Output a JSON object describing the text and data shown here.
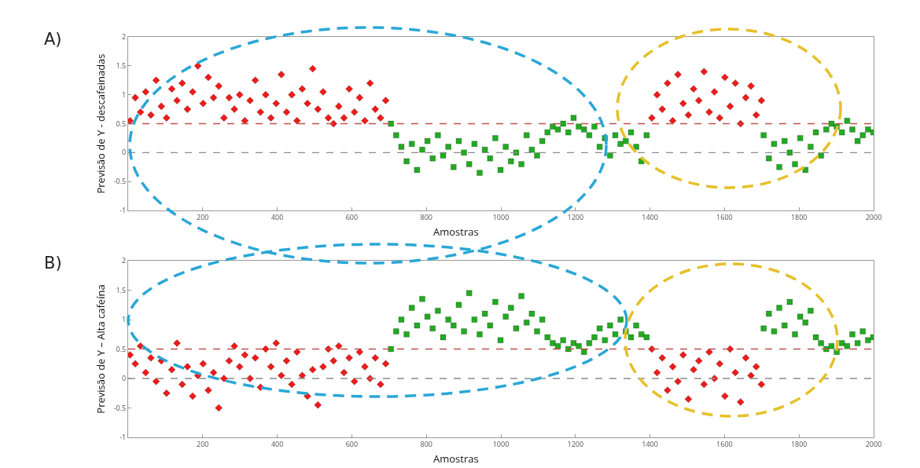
{
  "chart_data": [
    {
      "type": "scatter",
      "xlabel": "Amostras",
      "ylabel": "Previsão de Y - descafeinadas",
      "annotations": [
        "A)"
      ],
      "xlim": [
        0,
        2000
      ],
      "ylim": [
        -1,
        2
      ],
      "xticks": [
        200,
        400,
        600,
        800,
        1000,
        1200,
        1400,
        1600,
        1800,
        2000
      ],
      "yticks": [
        -1,
        -0.5,
        0,
        0.5,
        1,
        1.5,
        2
      ],
      "grid": false,
      "ref_lines": [
        {
          "axis": "y",
          "value": 0.5,
          "color": "#c0504d",
          "line_style": "dashed"
        },
        {
          "axis": "y",
          "value": 0,
          "color": "#8c8c8c",
          "line_style": "dashed"
        }
      ],
      "series": [
        {
          "color": "#ee1b1b",
          "marker": "diamond",
          "x": [
            5,
            19,
            33,
            47,
            61,
            75,
            89,
            103,
            117,
            131,
            145,
            159,
            173,
            187,
            201,
            215,
            229,
            243,
            257,
            271,
            285,
            299,
            313,
            327,
            341,
            355,
            369,
            383,
            397,
            411,
            425,
            439,
            453,
            467,
            481,
            495,
            509,
            523,
            537,
            551,
            565,
            579,
            593,
            607,
            621,
            635,
            649,
            663,
            677,
            691,
            1405,
            1419,
            1433,
            1447,
            1461,
            1475,
            1489,
            1503,
            1517,
            1531,
            1545,
            1559,
            1573,
            1587,
            1601,
            1615,
            1629,
            1643,
            1657,
            1671,
            1685,
            1699
          ],
          "values": [
            0.55,
            0.95,
            0.7,
            1.05,
            0.65,
            1.25,
            0.8,
            0.6,
            1.1,
            0.9,
            1.2,
            0.75,
            1.05,
            1.5,
            0.85,
            1.3,
            0.95,
            1.15,
            0.6,
            0.95,
            0.75,
            1.0,
            0.55,
            0.9,
            1.25,
            0.7,
            1.0,
            0.6,
            0.85,
            1.35,
            0.7,
            1.0,
            0.55,
            1.1,
            0.85,
            1.45,
            0.75,
            1.05,
            0.6,
            0.5,
            0.8,
            0.6,
            1.1,
            0.7,
            0.95,
            0.55,
            1.2,
            0.75,
            0.6,
            0.9,
            0.6,
            1.0,
            0.75,
            1.2,
            0.55,
            1.35,
            0.85,
            0.65,
            1.1,
            0.9,
            1.4,
            0.7,
            1.05,
            0.6,
            1.3,
            0.8,
            1.2,
            0.5,
            0.95,
            1.15,
            0.65,
            0.9
          ]
        },
        {
          "color": "#22aa22",
          "marker": "square",
          "x": [
            705,
            719,
            733,
            747,
            761,
            775,
            789,
            803,
            817,
            831,
            845,
            859,
            873,
            887,
            901,
            915,
            929,
            943,
            957,
            971,
            985,
            999,
            1013,
            1027,
            1041,
            1055,
            1069,
            1083,
            1097,
            1111,
            1125,
            1139,
            1153,
            1167,
            1181,
            1195,
            1209,
            1223,
            1237,
            1251,
            1265,
            1279,
            1293,
            1307,
            1321,
            1335,
            1349,
            1363,
            1377,
            1391,
            1705,
            1719,
            1733,
            1747,
            1761,
            1775,
            1789,
            1803,
            1817,
            1831,
            1845,
            1859,
            1873,
            1887,
            1901,
            1915,
            1929,
            1943,
            1957,
            1971,
            1985,
            1999
          ],
          "values": [
            0.5,
            0.3,
            0.1,
            -0.15,
            0.15,
            -0.3,
            0.05,
            0.2,
            -0.1,
            0.3,
            -0.05,
            0.1,
            -0.25,
            0.2,
            0.0,
            -0.2,
            0.15,
            -0.35,
            0.05,
            -0.1,
            0.25,
            -0.3,
            0.1,
            -0.15,
            0.0,
            -0.2,
            0.3,
            0.05,
            -0.05,
            0.2,
            0.35,
            0.45,
            0.4,
            0.5,
            0.35,
            0.6,
            0.45,
            0.4,
            0.3,
            0.45,
            0.1,
            0.25,
            -0.05,
            0.3,
            0.15,
            0.2,
            0.35,
            0.1,
            -0.15,
            0.3,
            0.3,
            -0.1,
            0.15,
            -0.25,
            0.2,
            0.0,
            -0.2,
            0.25,
            -0.3,
            0.1,
            0.35,
            -0.05,
            0.4,
            0.5,
            0.45,
            0.35,
            0.55,
            0.4,
            0.2,
            0.3,
            0.4,
            0.35
          ]
        }
      ]
    },
    {
      "type": "scatter",
      "xlabel": "Amostras",
      "ylabel": "Previsão de Y – Alta cafeína",
      "annotations": [
        "B)"
      ],
      "xlim": [
        0,
        2000
      ],
      "ylim": [
        -1,
        2
      ],
      "xticks": [
        200,
        400,
        600,
        800,
        1000,
        1200,
        1400,
        1600,
        1800,
        2000
      ],
      "yticks": [
        -1,
        -0.5,
        0,
        0.5,
        1,
        1.5,
        2
      ],
      "grid": false,
      "ref_lines": [
        {
          "axis": "y",
          "value": 0.5,
          "color": "#c0504d",
          "line_style": "dashed"
        },
        {
          "axis": "y",
          "value": 0,
          "color": "#8c8c8c",
          "line_style": "dashed"
        }
      ],
      "series": [
        {
          "color": "#ee1b1b",
          "marker": "diamond",
          "x": [
            5,
            19,
            33,
            47,
            61,
            75,
            89,
            103,
            117,
            131,
            145,
            159,
            173,
            187,
            201,
            215,
            229,
            243,
            257,
            271,
            285,
            299,
            313,
            327,
            341,
            355,
            369,
            383,
            397,
            411,
            425,
            439,
            453,
            467,
            481,
            495,
            509,
            523,
            537,
            551,
            565,
            579,
            593,
            607,
            621,
            635,
            649,
            663,
            677,
            691,
            1405,
            1419,
            1433,
            1447,
            1461,
            1475,
            1489,
            1503,
            1517,
            1531,
            1545,
            1559,
            1573,
            1587,
            1601,
            1615,
            1629,
            1643,
            1657,
            1671,
            1685,
            1699
          ],
          "values": [
            0.4,
            0.25,
            0.55,
            0.1,
            0.35,
            -0.05,
            0.3,
            -0.25,
            0.15,
            0.6,
            -0.1,
            0.2,
            -0.3,
            0.05,
            0.25,
            -0.2,
            0.1,
            -0.5,
            0.0,
            0.3,
            0.55,
            0.2,
            0.4,
            0.0,
            0.35,
            -0.15,
            0.5,
            0.2,
            0.6,
            0.05,
            0.3,
            -0.1,
            0.45,
            0.05,
            -0.3,
            0.15,
            -0.45,
            0.2,
            0.5,
            0.3,
            0.55,
            0.1,
            0.35,
            -0.05,
            0.45,
            0.2,
            0.0,
            0.35,
            -0.1,
            0.25,
            0.5,
            0.1,
            0.35,
            -0.2,
            0.2,
            -0.05,
            0.4,
            -0.35,
            0.15,
            0.3,
            -0.1,
            0.45,
            0.0,
            0.25,
            -0.3,
            0.5,
            0.1,
            -0.4,
            0.35,
            0.05,
            0.2,
            -0.1
          ]
        },
        {
          "color": "#22aa22",
          "marker": "square",
          "x": [
            705,
            719,
            733,
            747,
            761,
            775,
            789,
            803,
            817,
            831,
            845,
            859,
            873,
            887,
            901,
            915,
            929,
            943,
            957,
            971,
            985,
            999,
            1013,
            1027,
            1041,
            1055,
            1069,
            1083,
            1097,
            1111,
            1125,
            1139,
            1153,
            1167,
            1181,
            1195,
            1209,
            1223,
            1237,
            1251,
            1265,
            1279,
            1293,
            1307,
            1321,
            1335,
            1349,
            1363,
            1377,
            1391,
            1705,
            1719,
            1733,
            1747,
            1761,
            1775,
            1789,
            1803,
            1817,
            1831,
            1845,
            1859,
            1873,
            1887,
            1901,
            1915,
            1929,
            1943,
            1957,
            1971,
            1985,
            1999
          ],
          "values": [
            0.5,
            0.8,
            1.0,
            0.75,
            1.2,
            0.9,
            1.35,
            1.05,
            0.85,
            1.15,
            0.7,
            1.0,
            0.9,
            1.25,
            0.8,
            1.45,
            1.0,
            0.75,
            1.1,
            0.9,
            1.3,
            0.65,
            1.05,
            1.2,
            0.85,
            1.4,
            0.95,
            1.1,
            0.8,
            1.0,
            0.7,
            0.6,
            0.55,
            0.65,
            0.5,
            0.6,
            0.55,
            0.45,
            0.6,
            0.7,
            0.85,
            0.65,
            0.9,
            0.75,
            1.0,
            0.8,
            0.7,
            0.9,
            0.75,
            0.7,
            0.85,
            1.1,
            0.8,
            1.2,
            0.9,
            1.3,
            0.75,
            1.05,
            0.95,
            1.15,
            0.7,
            0.6,
            0.5,
            0.55,
            0.45,
            0.6,
            0.55,
            0.75,
            0.6,
            0.8,
            0.65,
            0.7
          ]
        }
      ]
    }
  ]
}
